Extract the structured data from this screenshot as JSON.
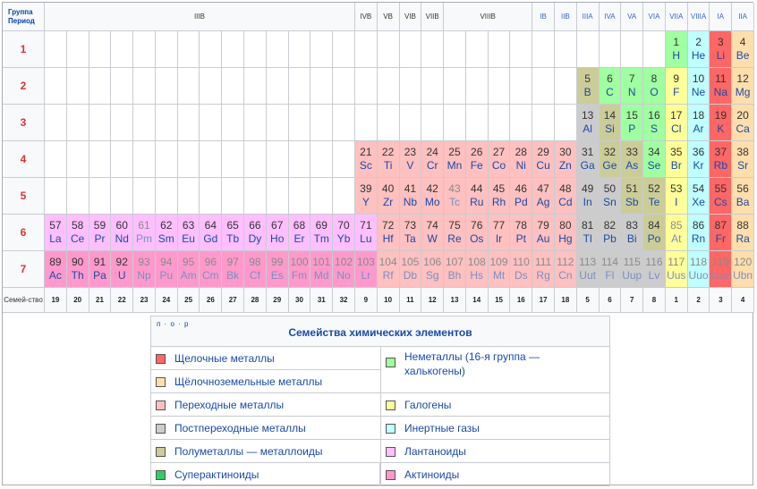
{
  "header": {
    "corner_top": "Группа",
    "corner_bottom": "Период",
    "groups": [
      "IIIB",
      "IVB",
      "VB",
      "VIB",
      "VIIB",
      "VIIIB",
      "IB",
      "IIB",
      "IIIA",
      "IVA",
      "VA",
      "VIA",
      "VIIA",
      "VIIIA",
      "IA",
      "IIA"
    ],
    "family_label": "Семей-ство"
  },
  "periods": [
    "1",
    "2",
    "3",
    "4",
    "5",
    "6",
    "7"
  ],
  "families": [
    "19",
    "20",
    "21",
    "22",
    "23",
    "24",
    "25",
    "26",
    "27",
    "28",
    "29",
    "30",
    "31",
    "32",
    "9",
    "10",
    "11",
    "12",
    "13",
    "14",
    "15",
    "16",
    "17",
    "18",
    "5",
    "6",
    "7",
    "8",
    "1",
    "2",
    "3",
    "4"
  ],
  "colors": {
    "alkali": "#ff6666",
    "alkaline_earth": "#ffdead",
    "transition": "#ffc0c0",
    "post_transition": "#cccccc",
    "metalloid": "#cccc99",
    "nonmetal": "#a0ffa0",
    "halogen": "#ffff99",
    "noble": "#c0ffff",
    "lanthanoid": "#ffbfff",
    "actinoid": "#ff99cc",
    "superactinoid": "#33cc66"
  },
  "elements": [
    {
      "n": "1",
      "s": "H",
      "c": "nonmetal",
      "r": 1,
      "col": 28
    },
    {
      "n": "2",
      "s": "He",
      "c": "noble",
      "r": 1,
      "col": 29
    },
    {
      "n": "3",
      "s": "Li",
      "c": "alkali",
      "r": 1,
      "col": 30
    },
    {
      "n": "4",
      "s": "Be",
      "c": "alkaline_earth",
      "r": 1,
      "col": 31
    },
    {
      "n": "5",
      "s": "B",
      "c": "metalloid",
      "r": 2,
      "col": 24
    },
    {
      "n": "6",
      "s": "C",
      "c": "nonmetal",
      "r": 2,
      "col": 25
    },
    {
      "n": "7",
      "s": "N",
      "c": "nonmetal",
      "r": 2,
      "col": 26
    },
    {
      "n": "8",
      "s": "O",
      "c": "nonmetal",
      "r": 2,
      "col": 27
    },
    {
      "n": "9",
      "s": "F",
      "c": "halogen",
      "r": 2,
      "col": 28
    },
    {
      "n": "10",
      "s": "Ne",
      "c": "noble",
      "r": 2,
      "col": 29
    },
    {
      "n": "11",
      "s": "Na",
      "c": "alkali",
      "r": 2,
      "col": 30
    },
    {
      "n": "12",
      "s": "Mg",
      "c": "alkaline_earth",
      "r": 2,
      "col": 31
    },
    {
      "n": "13",
      "s": "Al",
      "c": "post_transition",
      "r": 3,
      "col": 24
    },
    {
      "n": "14",
      "s": "Si",
      "c": "metalloid",
      "r": 3,
      "col": 25
    },
    {
      "n": "15",
      "s": "P",
      "c": "nonmetal",
      "r": 3,
      "col": 26
    },
    {
      "n": "16",
      "s": "S",
      "c": "nonmetal",
      "r": 3,
      "col": 27
    },
    {
      "n": "17",
      "s": "Cl",
      "c": "halogen",
      "r": 3,
      "col": 28
    },
    {
      "n": "18",
      "s": "Ar",
      "c": "noble",
      "r": 3,
      "col": 29
    },
    {
      "n": "19",
      "s": "K",
      "c": "alkali",
      "r": 3,
      "col": 30
    },
    {
      "n": "20",
      "s": "Ca",
      "c": "alkaline_earth",
      "r": 3,
      "col": 31
    },
    {
      "n": "21",
      "s": "Sc",
      "c": "transition",
      "r": 4,
      "col": 14
    },
    {
      "n": "22",
      "s": "Ti",
      "c": "transition",
      "r": 4,
      "col": 15
    },
    {
      "n": "23",
      "s": "V",
      "c": "transition",
      "r": 4,
      "col": 16
    },
    {
      "n": "24",
      "s": "Cr",
      "c": "transition",
      "r": 4,
      "col": 17
    },
    {
      "n": "25",
      "s": "Mn",
      "c": "transition",
      "r": 4,
      "col": 18
    },
    {
      "n": "26",
      "s": "Fe",
      "c": "transition",
      "r": 4,
      "col": 19
    },
    {
      "n": "27",
      "s": "Co",
      "c": "transition",
      "r": 4,
      "col": 20
    },
    {
      "n": "28",
      "s": "Ni",
      "c": "transition",
      "r": 4,
      "col": 21
    },
    {
      "n": "29",
      "s": "Cu",
      "c": "transition",
      "r": 4,
      "col": 22
    },
    {
      "n": "30",
      "s": "Zn",
      "c": "transition",
      "r": 4,
      "col": 23
    },
    {
      "n": "31",
      "s": "Ga",
      "c": "post_transition",
      "r": 4,
      "col": 24
    },
    {
      "n": "32",
      "s": "Ge",
      "c": "metalloid",
      "r": 4,
      "col": 25
    },
    {
      "n": "33",
      "s": "As",
      "c": "metalloid",
      "r": 4,
      "col": 26
    },
    {
      "n": "34",
      "s": "Se",
      "c": "nonmetal",
      "r": 4,
      "col": 27
    },
    {
      "n": "35",
      "s": "Br",
      "c": "halogen",
      "r": 4,
      "col": 28
    },
    {
      "n": "36",
      "s": "Kr",
      "c": "noble",
      "r": 4,
      "col": 29
    },
    {
      "n": "37",
      "s": "Rb",
      "c": "alkali",
      "r": 4,
      "col": 30
    },
    {
      "n": "38",
      "s": "Sr",
      "c": "alkaline_earth",
      "r": 4,
      "col": 31
    },
    {
      "n": "39",
      "s": "Y",
      "c": "transition",
      "r": 5,
      "col": 14
    },
    {
      "n": "40",
      "s": "Zr",
      "c": "transition",
      "r": 5,
      "col": 15
    },
    {
      "n": "41",
      "s": "Nb",
      "c": "transition",
      "r": 5,
      "col": 16
    },
    {
      "n": "42",
      "s": "Mo",
      "c": "transition",
      "r": 5,
      "col": 17
    },
    {
      "n": "43",
      "s": "Tc",
      "c": "transition",
      "r": 5,
      "col": 18,
      "f": true
    },
    {
      "n": "44",
      "s": "Ru",
      "c": "transition",
      "r": 5,
      "col": 19
    },
    {
      "n": "45",
      "s": "Rh",
      "c": "transition",
      "r": 5,
      "col": 20
    },
    {
      "n": "46",
      "s": "Pd",
      "c": "transition",
      "r": 5,
      "col": 21
    },
    {
      "n": "47",
      "s": "Ag",
      "c": "transition",
      "r": 5,
      "col": 22
    },
    {
      "n": "48",
      "s": "Cd",
      "c": "transition",
      "r": 5,
      "col": 23
    },
    {
      "n": "49",
      "s": "In",
      "c": "post_transition",
      "r": 5,
      "col": 24
    },
    {
      "n": "50",
      "s": "Sn",
      "c": "post_transition",
      "r": 5,
      "col": 25
    },
    {
      "n": "51",
      "s": "Sb",
      "c": "metalloid",
      "r": 5,
      "col": 26
    },
    {
      "n": "52",
      "s": "Te",
      "c": "metalloid",
      "r": 5,
      "col": 27
    },
    {
      "n": "53",
      "s": "I",
      "c": "halogen",
      "r": 5,
      "col": 28
    },
    {
      "n": "54",
      "s": "Xe",
      "c": "noble",
      "r": 5,
      "col": 29
    },
    {
      "n": "55",
      "s": "Cs",
      "c": "alkali",
      "r": 5,
      "col": 30
    },
    {
      "n": "56",
      "s": "Ba",
      "c": "alkaline_earth",
      "r": 5,
      "col": 31
    },
    {
      "n": "57",
      "s": "La",
      "c": "lanthanoid",
      "r": 6,
      "col": 0
    },
    {
      "n": "58",
      "s": "Ce",
      "c": "lanthanoid",
      "r": 6,
      "col": 1
    },
    {
      "n": "59",
      "s": "Pr",
      "c": "lanthanoid",
      "r": 6,
      "col": 2
    },
    {
      "n": "60",
      "s": "Nd",
      "c": "lanthanoid",
      "r": 6,
      "col": 3
    },
    {
      "n": "61",
      "s": "Pm",
      "c": "lanthanoid",
      "r": 6,
      "col": 4,
      "f": true
    },
    {
      "n": "62",
      "s": "Sm",
      "c": "lanthanoid",
      "r": 6,
      "col": 5
    },
    {
      "n": "63",
      "s": "Eu",
      "c": "lanthanoid",
      "r": 6,
      "col": 6
    },
    {
      "n": "64",
      "s": "Gd",
      "c": "lanthanoid",
      "r": 6,
      "col": 7
    },
    {
      "n": "65",
      "s": "Tb",
      "c": "lanthanoid",
      "r": 6,
      "col": 8
    },
    {
      "n": "66",
      "s": "Dy",
      "c": "lanthanoid",
      "r": 6,
      "col": 9
    },
    {
      "n": "67",
      "s": "Ho",
      "c": "lanthanoid",
      "r": 6,
      "col": 10
    },
    {
      "n": "68",
      "s": "Er",
      "c": "lanthanoid",
      "r": 6,
      "col": 11
    },
    {
      "n": "69",
      "s": "Tm",
      "c": "lanthanoid",
      "r": 6,
      "col": 12
    },
    {
      "n": "70",
      "s": "Yb",
      "c": "lanthanoid",
      "r": 6,
      "col": 13
    },
    {
      "n": "71",
      "s": "Lu",
      "c": "lanthanoid",
      "r": 6,
      "col": 14
    },
    {
      "n": "72",
      "s": "Hf",
      "c": "transition",
      "r": 6,
      "col": 15
    },
    {
      "n": "73",
      "s": "Ta",
      "c": "transition",
      "r": 6,
      "col": 16
    },
    {
      "n": "74",
      "s": "W",
      "c": "transition",
      "r": 6,
      "col": 17
    },
    {
      "n": "75",
      "s": "Re",
      "c": "transition",
      "r": 6,
      "col": 18
    },
    {
      "n": "76",
      "s": "Os",
      "c": "transition",
      "r": 6,
      "col": 19
    },
    {
      "n": "77",
      "s": "Ir",
      "c": "transition",
      "r": 6,
      "col": 20
    },
    {
      "n": "78",
      "s": "Pt",
      "c": "transition",
      "r": 6,
      "col": 21
    },
    {
      "n": "79",
      "s": "Au",
      "c": "transition",
      "r": 6,
      "col": 22
    },
    {
      "n": "80",
      "s": "Hg",
      "c": "transition",
      "r": 6,
      "col": 23
    },
    {
      "n": "81",
      "s": "Tl",
      "c": "post_transition",
      "r": 6,
      "col": 24
    },
    {
      "n": "82",
      "s": "Pb",
      "c": "post_transition",
      "r": 6,
      "col": 25
    },
    {
      "n": "83",
      "s": "Bi",
      "c": "post_transition",
      "r": 6,
      "col": 26
    },
    {
      "n": "84",
      "s": "Po",
      "c": "metalloid",
      "r": 6,
      "col": 27
    },
    {
      "n": "85",
      "s": "At",
      "c": "halogen",
      "r": 6,
      "col": 28,
      "f": true
    },
    {
      "n": "86",
      "s": "Rn",
      "c": "noble",
      "r": 6,
      "col": 29
    },
    {
      "n": "87",
      "s": "Fr",
      "c": "alkali",
      "r": 6,
      "col": 30
    },
    {
      "n": "88",
      "s": "Ra",
      "c": "alkaline_earth",
      "r": 6,
      "col": 31
    },
    {
      "n": "89",
      "s": "Ac",
      "c": "actinoid",
      "r": 7,
      "col": 0
    },
    {
      "n": "90",
      "s": "Th",
      "c": "actinoid",
      "r": 7,
      "col": 1
    },
    {
      "n": "91",
      "s": "Pa",
      "c": "actinoid",
      "r": 7,
      "col": 2
    },
    {
      "n": "92",
      "s": "U",
      "c": "actinoid",
      "r": 7,
      "col": 3
    },
    {
      "n": "93",
      "s": "Np",
      "c": "actinoid",
      "r": 7,
      "col": 4,
      "f": true
    },
    {
      "n": "94",
      "s": "Pu",
      "c": "actinoid",
      "r": 7,
      "col": 5,
      "f": true
    },
    {
      "n": "95",
      "s": "Am",
      "c": "actinoid",
      "r": 7,
      "col": 6,
      "f": true
    },
    {
      "n": "96",
      "s": "Cm",
      "c": "actinoid",
      "r": 7,
      "col": 7,
      "f": true
    },
    {
      "n": "97",
      "s": "Bk",
      "c": "actinoid",
      "r": 7,
      "col": 8,
      "f": true
    },
    {
      "n": "98",
      "s": "Cf",
      "c": "actinoid",
      "r": 7,
      "col": 9,
      "f": true
    },
    {
      "n": "99",
      "s": "Es",
      "c": "actinoid",
      "r": 7,
      "col": 10,
      "f": true
    },
    {
      "n": "100",
      "s": "Fm",
      "c": "actinoid",
      "r": 7,
      "col": 11,
      "f": true
    },
    {
      "n": "101",
      "s": "Md",
      "c": "actinoid",
      "r": 7,
      "col": 12,
      "f": true
    },
    {
      "n": "102",
      "s": "No",
      "c": "actinoid",
      "r": 7,
      "col": 13,
      "f": true
    },
    {
      "n": "103",
      "s": "Lr",
      "c": "actinoid",
      "r": 7,
      "col": 14,
      "f": true
    },
    {
      "n": "104",
      "s": "Rf",
      "c": "transition",
      "r": 7,
      "col": 15,
      "f": true
    },
    {
      "n": "105",
      "s": "Db",
      "c": "transition",
      "r": 7,
      "col": 16,
      "f": true
    },
    {
      "n": "106",
      "s": "Sg",
      "c": "transition",
      "r": 7,
      "col": 17,
      "f": true
    },
    {
      "n": "107",
      "s": "Bh",
      "c": "transition",
      "r": 7,
      "col": 18,
      "f": true
    },
    {
      "n": "108",
      "s": "Hs",
      "c": "transition",
      "r": 7,
      "col": 19,
      "f": true
    },
    {
      "n": "109",
      "s": "Mt",
      "c": "transition",
      "r": 7,
      "col": 20,
      "f": true
    },
    {
      "n": "110",
      "s": "Ds",
      "c": "transition",
      "r": 7,
      "col": 21,
      "f": true
    },
    {
      "n": "111",
      "s": "Rg",
      "c": "transition",
      "r": 7,
      "col": 22,
      "f": true
    },
    {
      "n": "112",
      "s": "Cn",
      "c": "transition",
      "r": 7,
      "col": 23,
      "f": true
    },
    {
      "n": "113",
      "s": "Uut",
      "c": "post_transition",
      "r": 7,
      "col": 24,
      "f": true
    },
    {
      "n": "114",
      "s": "Fl",
      "c": "post_transition",
      "r": 7,
      "col": 25,
      "f": true
    },
    {
      "n": "115",
      "s": "Uup",
      "c": "post_transition",
      "r": 7,
      "col": 26,
      "f": true
    },
    {
      "n": "116",
      "s": "Lv",
      "c": "post_transition",
      "r": 7,
      "col": 27,
      "f": true
    },
    {
      "n": "117",
      "s": "Uus",
      "c": "halogen",
      "r": 7,
      "col": 28,
      "f": true
    },
    {
      "n": "118",
      "s": "Uuo",
      "c": "noble",
      "r": 7,
      "col": 29,
      "f": true
    },
    {
      "n": "119",
      "s": "Uue",
      "c": "alkali",
      "r": 7,
      "col": 30,
      "f": true
    },
    {
      "n": "120",
      "s": "Ubn",
      "c": "alkaline_earth",
      "r": 7,
      "col": 31,
      "f": true
    }
  ],
  "legend": {
    "nav": "п · о · р",
    "title": "Семейства химических элементов",
    "left": [
      {
        "label": "Щелочные металлы",
        "c": "alkali"
      },
      {
        "label": "Щёлочноземельные металлы",
        "c": "alkaline_earth"
      },
      {
        "label": "Переходные металлы",
        "c": "transition"
      },
      {
        "label": "Постпереходные металлы",
        "c": "post_transition"
      },
      {
        "label": "Полуметаллы — металлоиды",
        "c": "metalloid"
      },
      {
        "label": "Суперактиноиды",
        "c": "superactinoid"
      }
    ],
    "right": [
      {
        "label": "Неметаллы (16-я группа — халькогены)",
        "c": "nonmetal"
      },
      {
        "label": "Галогены",
        "c": "halogen"
      },
      {
        "label": "Инертные газы",
        "c": "noble"
      },
      {
        "label": "Лантаноиды",
        "c": "lanthanoid"
      },
      {
        "label": "Актиноиды",
        "c": "actinoid"
      }
    ]
  }
}
